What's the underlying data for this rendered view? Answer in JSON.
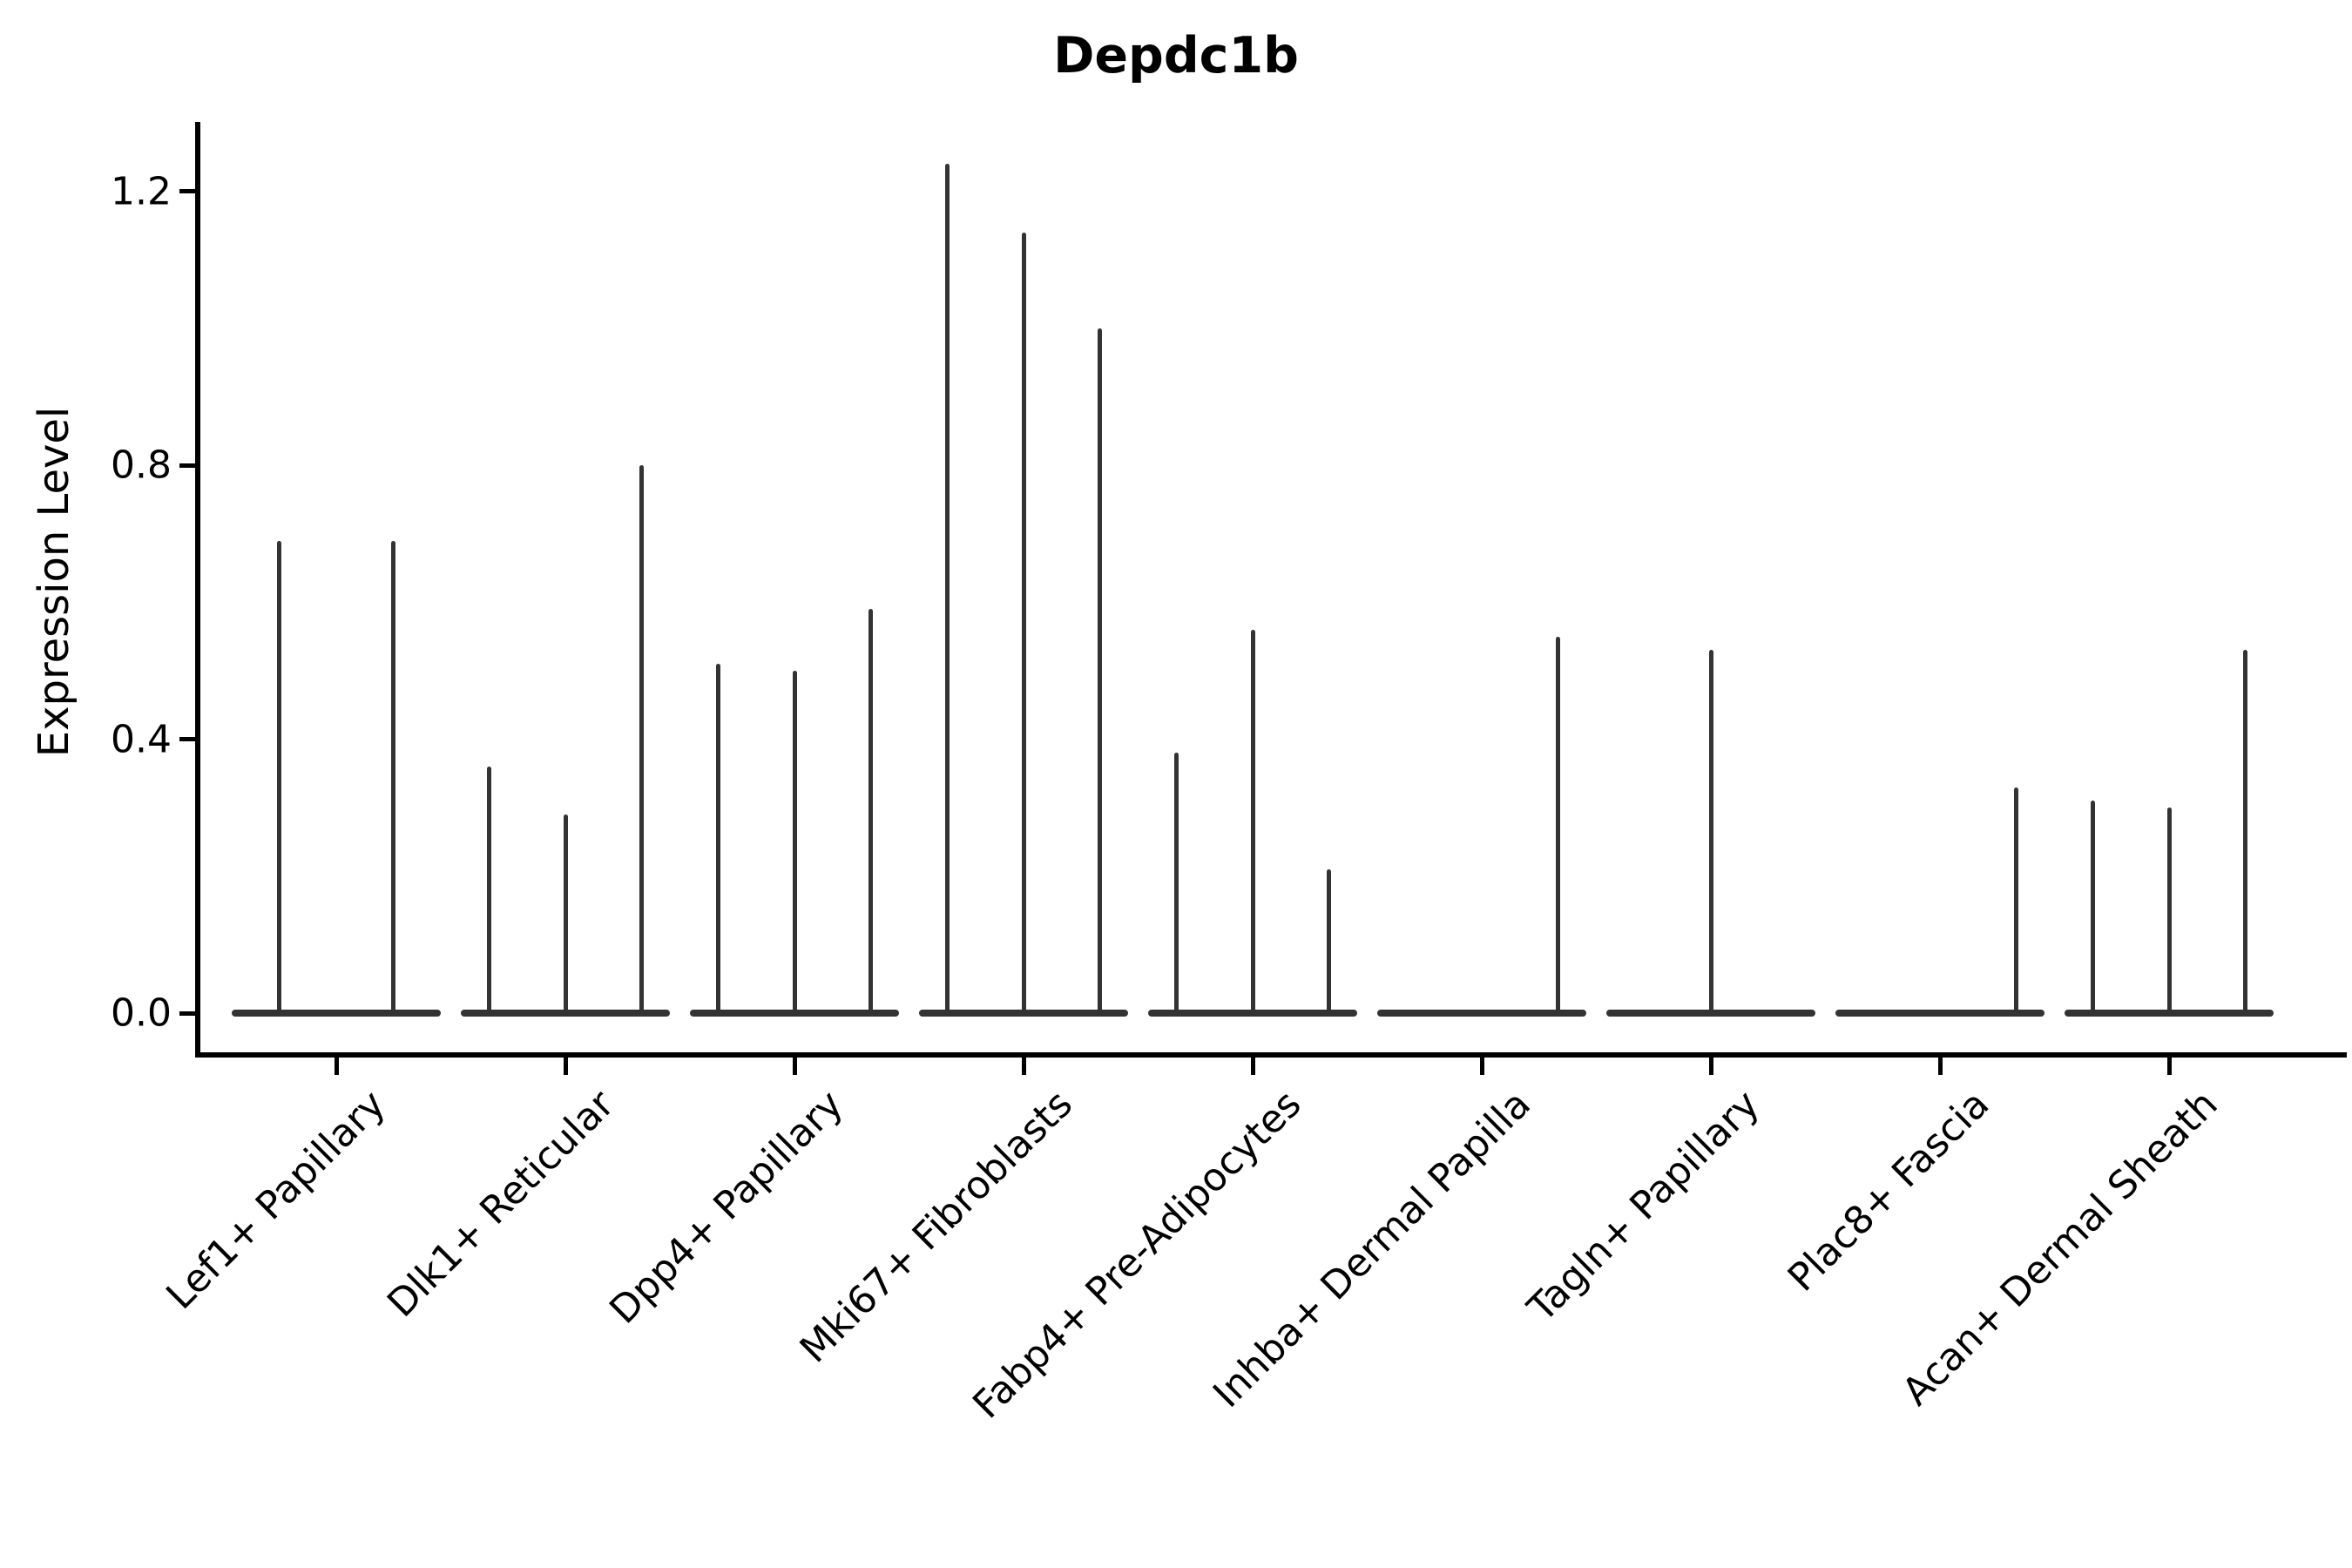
{
  "title": "Depdc1b",
  "y_axis": {
    "label": "Expression Level",
    "tick_labels": [
      "0.0",
      "0.4",
      "0.8",
      "1.2"
    ]
  },
  "colors": {
    "ink": "#333333",
    "axis": "#000000",
    "background": "#ffffff"
  },
  "chart_data": {
    "type": "violin",
    "title": "Depdc1b",
    "xlabel": "",
    "ylabel": "Expression Level",
    "ylim": [
      -0.06,
      1.3
    ],
    "yticks": [
      0.0,
      0.4,
      0.8,
      1.2
    ],
    "grid": false,
    "legend": false,
    "note": "Seurat-style violin plot; each cell-type group holds up to 3 violins that are collapsed flat at 0 with thin needle spikes rising to the maximum expression value",
    "categories": [
      "Lef1+ Papillary",
      "Dlk1+ Reticular",
      "Dpp4+ Papillary",
      "Mki67+ Fibroblasts",
      "Fabp4+ Pre-Adipocytes",
      "Inhba+ Dermal Papilla",
      "Tagln+ Papillary",
      "Plac8+ Fascia",
      "Acan+ Dermal Sheath"
    ],
    "violins": [
      {
        "category": "Lef1+ Papillary",
        "spikes": [
          {
            "x_offset_frac": 0.25,
            "max_expression": 0.69
          },
          {
            "x_offset_frac": 0.75,
            "max_expression": 0.69
          }
        ]
      },
      {
        "category": "Dlk1+ Reticular",
        "spikes": [
          {
            "x_offset_frac": 0.1667,
            "max_expression": 0.36
          },
          {
            "x_offset_frac": 0.5,
            "max_expression": 0.29
          },
          {
            "x_offset_frac": 0.8333,
            "max_expression": 0.8
          }
        ]
      },
      {
        "category": "Dpp4+ Papillary",
        "spikes": [
          {
            "x_offset_frac": 0.1667,
            "max_expression": 0.51
          },
          {
            "x_offset_frac": 0.5,
            "max_expression": 0.5
          },
          {
            "x_offset_frac": 0.8333,
            "max_expression": 0.59
          }
        ]
      },
      {
        "category": "Mki67+ Fibroblasts",
        "spikes": [
          {
            "x_offset_frac": 0.1667,
            "max_expression": 1.24
          },
          {
            "x_offset_frac": 0.5,
            "max_expression": 1.14
          },
          {
            "x_offset_frac": 0.8333,
            "max_expression": 1.0
          }
        ]
      },
      {
        "category": "Fabp4+ Pre-Adipocytes",
        "spikes": [
          {
            "x_offset_frac": 0.1667,
            "max_expression": 0.38
          },
          {
            "x_offset_frac": 0.5,
            "max_expression": 0.56
          },
          {
            "x_offset_frac": 0.8333,
            "max_expression": 0.21
          }
        ]
      },
      {
        "category": "Inhba+ Dermal Papilla",
        "spikes": [
          {
            "x_offset_frac": 0.8333,
            "max_expression": 0.55
          }
        ]
      },
      {
        "category": "Tagln+ Papillary",
        "spikes": [
          {
            "x_offset_frac": 0.5,
            "max_expression": 0.53
          }
        ]
      },
      {
        "category": "Plac8+ Fascia",
        "spikes": [
          {
            "x_offset_frac": 0.8333,
            "max_expression": 0.33
          }
        ]
      },
      {
        "category": "Acan+ Dermal Sheath",
        "spikes": [
          {
            "x_offset_frac": 0.1667,
            "max_expression": 0.31
          },
          {
            "x_offset_frac": 0.5,
            "max_expression": 0.3
          },
          {
            "x_offset_frac": 0.8333,
            "max_expression": 0.53
          }
        ]
      }
    ]
  }
}
